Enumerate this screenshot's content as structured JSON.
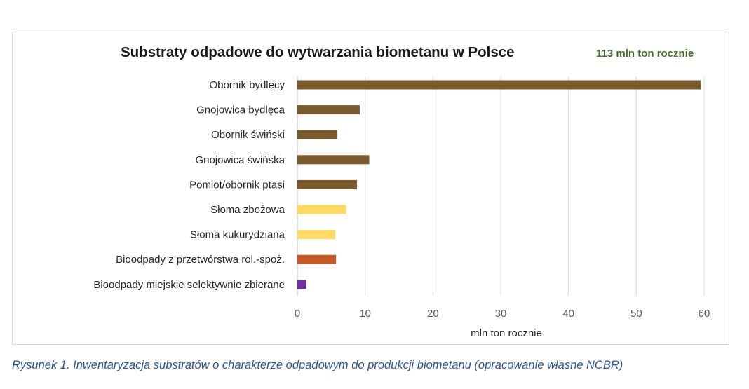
{
  "chart_data": {
    "type": "bar",
    "orientation": "horizontal",
    "title": "Substraty odpadowe do wytwarzania biometanu w Polsce",
    "subtitle": "113 mln ton rocznie",
    "xlabel": "mln ton rocznie",
    "ylabel": "",
    "xlim": [
      0,
      60
    ],
    "xticks": [
      "0",
      "10",
      "20",
      "30",
      "40",
      "50",
      "60"
    ],
    "grid": "vertical",
    "legend": "none",
    "categories": [
      "Obornik bydlęcy",
      "Gnojowica bydlęca",
      "Obornik świński",
      "Gnojowica świńska",
      "Pomiot/obornik ptasi",
      "Słoma zbożowa",
      "Słoma kukurydziana",
      "Bioodpady z przetwórstwa rol.-spoż.",
      "Bioodpady miejskie selektywnie zbierane"
    ],
    "values": [
      59.5,
      9.2,
      5.9,
      10.6,
      8.8,
      7.2,
      5.6,
      5.7,
      1.3
    ],
    "colors": [
      "#7b5a2e",
      "#7b5a2e",
      "#7b5a2e",
      "#7b5a2e",
      "#7b5a2e",
      "#ffd966",
      "#ffd966",
      "#c55a28",
      "#7030a0"
    ],
    "subtitle_color": "#4b6b2a"
  },
  "caption": "Rysunek 1. Inwentaryzacja substratów o charakterze odpadowym do produkcji biometanu (opracowanie własne NCBR)"
}
